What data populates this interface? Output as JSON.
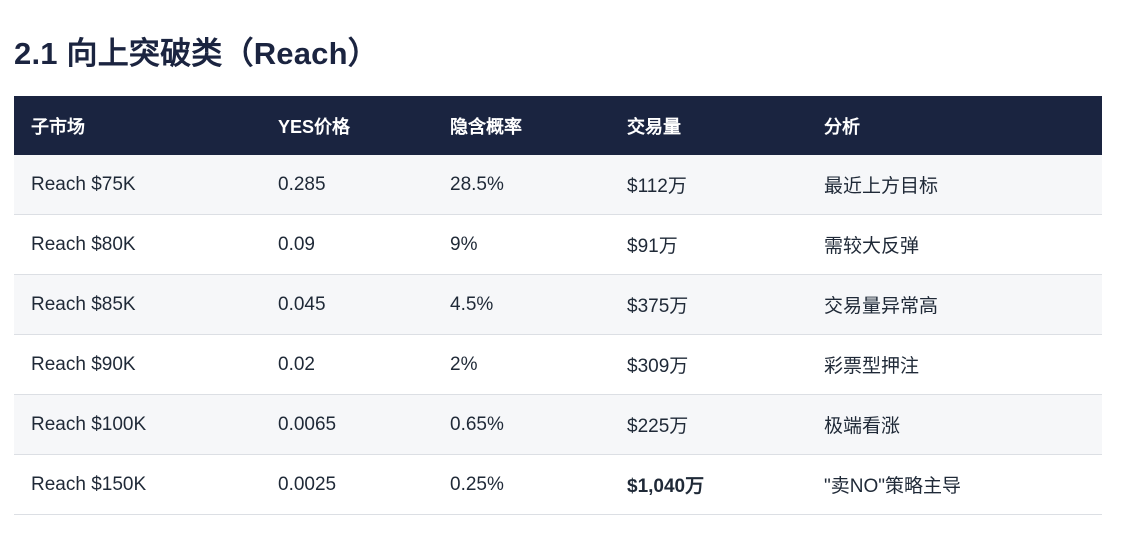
{
  "section": {
    "title": "2.1 向上突破类（Reach）"
  },
  "table": {
    "headers": [
      "子市场",
      "YES价格",
      "隐含概率",
      "交易量",
      "分析"
    ],
    "rows": [
      {
        "market": "Reach $75K",
        "yes_price": "0.285",
        "probability": "28.5%",
        "volume": "$112万",
        "analysis": "最近上方目标"
      },
      {
        "market": "Reach $80K",
        "yes_price": "0.09",
        "probability": "9%",
        "volume": "$91万",
        "analysis": "需较大反弹"
      },
      {
        "market": "Reach $85K",
        "yes_price": "0.045",
        "probability": "4.5%",
        "volume": "$375万",
        "analysis": "交易量异常高"
      },
      {
        "market": "Reach $90K",
        "yes_price": "0.02",
        "probability": "2%",
        "volume": "$309万",
        "analysis": "彩票型押注"
      },
      {
        "market": "Reach $100K",
        "yes_price": "0.0065",
        "probability": "0.65%",
        "volume": "$225万",
        "analysis": "极端看涨"
      },
      {
        "market": "Reach $150K",
        "yes_price": "0.0025",
        "probability": "0.25%",
        "volume": "$1,040万",
        "analysis": "\"卖NO\"策略主导"
      }
    ]
  }
}
